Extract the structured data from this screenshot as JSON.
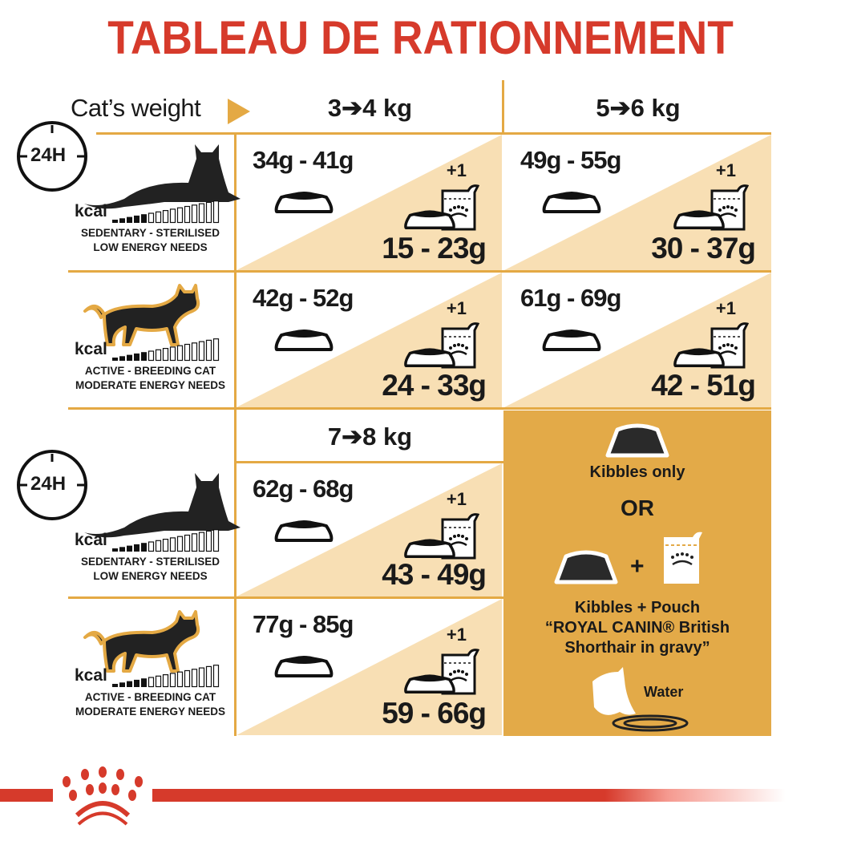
{
  "title": "TABLEAU DE RATIONNEMENT",
  "header": {
    "cats_weight": "Cat’s weight",
    "weights": [
      "3➔4 kg",
      "5➔6 kg",
      "7➔8 kg"
    ]
  },
  "profiles": {
    "sedentary": {
      "clock": "24H",
      "kcal": "kcal",
      "line1": "SEDENTARY - STERILISED",
      "line2": "LOW ENERGY NEEDS"
    },
    "active": {
      "kcal": "kcal",
      "line1": "ACTIVE - BREEDING CAT",
      "line2": "MODERATE ENERGY NEEDS"
    }
  },
  "pouch_label": "+1",
  "cells": [
    {
      "weight": "3➔4 kg",
      "profile": "sedentary",
      "kibbles_only": "34g - 41g",
      "kibbles_with_pouch": "15 - 23g"
    },
    {
      "weight": "5➔6 kg",
      "profile": "sedentary",
      "kibbles_only": "49g - 55g",
      "kibbles_with_pouch": "30 - 37g"
    },
    {
      "weight": "3➔4 kg",
      "profile": "active",
      "kibbles_only": "42g - 52g",
      "kibbles_with_pouch": "24 - 33g"
    },
    {
      "weight": "5➔6 kg",
      "profile": "active",
      "kibbles_only": "61g - 69g",
      "kibbles_with_pouch": "42 - 51g"
    },
    {
      "weight": "7➔8 kg",
      "profile": "sedentary",
      "kibbles_only": "62g - 68g",
      "kibbles_with_pouch": "43 - 49g"
    },
    {
      "weight": "7➔8 kg",
      "profile": "active",
      "kibbles_only": "77g - 85g",
      "kibbles_with_pouch": "59 - 66g"
    }
  ],
  "legend": {
    "kibbles_only": "Kibbles only",
    "or": "OR",
    "plus": "+",
    "kibbles_pouch_1": "Kibbles + Pouch",
    "kibbles_pouch_2": "“ROYAL CANIN® British",
    "kibbles_pouch_3": "Shorthair in gravy”",
    "water": "Water"
  },
  "colors": {
    "brand_red": "#d63a2b",
    "gold": "#e4a944",
    "cream": "#f8dfb4",
    "panel": "#e3aa48"
  }
}
